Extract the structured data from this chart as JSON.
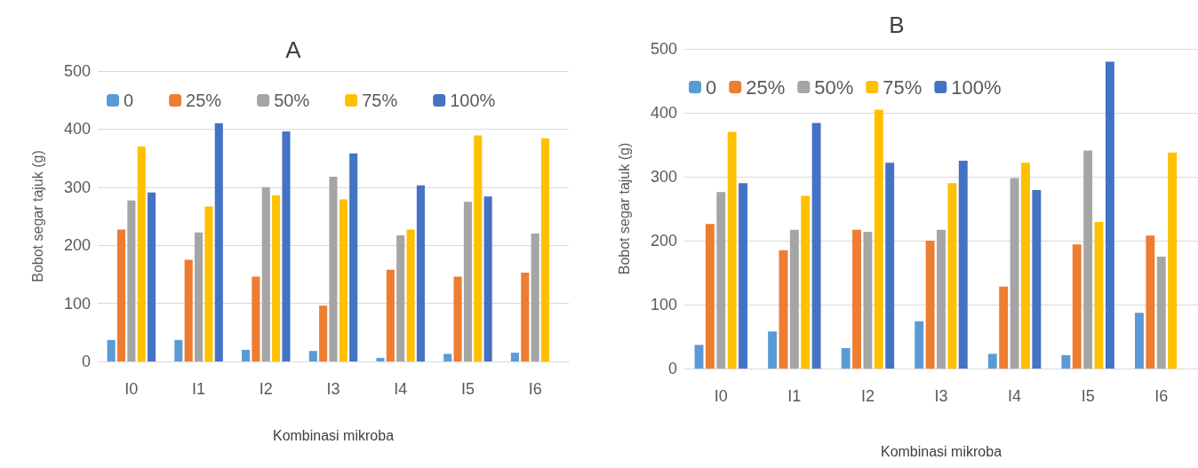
{
  "chart_data": [
    {
      "type": "bar",
      "title": "A",
      "xlabel": "Kombinasi mikroba",
      "ylabel": "Bobot segar tajuk (g)",
      "categories": [
        "I0",
        "I1",
        "I2",
        "I3",
        "I4",
        "I5",
        "I6"
      ],
      "ylim": [
        0,
        500
      ],
      "yticks": [
        0,
        100,
        200,
        300,
        400,
        500
      ],
      "grid": "y",
      "legend": "top left",
      "series": [
        {
          "name": "0",
          "color": "#5b9bd5",
          "values": [
            37,
            37,
            20,
            18,
            6,
            13,
            15
          ]
        },
        {
          "name": "25%",
          "color": "#ed7d31",
          "values": [
            227,
            175,
            146,
            96,
            158,
            146,
            153
          ]
        },
        {
          "name": "50%",
          "color": "#a5a5a5",
          "values": [
            277,
            222,
            300,
            318,
            217,
            275,
            220
          ]
        },
        {
          "name": "75%",
          "color": "#ffc000",
          "values": [
            370,
            267,
            286,
            279,
            227,
            389,
            384
          ]
        },
        {
          "name": "100%",
          "color": "#4472c4",
          "values": [
            291,
            410,
            396,
            358,
            303,
            284,
            null
          ]
        }
      ]
    },
    {
      "type": "bar",
      "title": "B",
      "xlabel": "Kombinasi mikroba",
      "ylabel": "Bobot segar tajuk (g)",
      "categories": [
        "I0",
        "I1",
        "I2",
        "I3",
        "I4",
        "I5",
        "I6"
      ],
      "ylim": [
        0,
        500
      ],
      "yticks": [
        0,
        100,
        200,
        300,
        400,
        500
      ],
      "grid": "y",
      "legend": "top left",
      "series": [
        {
          "name": "0",
          "color": "#5b9bd5",
          "values": [
            37,
            58,
            32,
            74,
            23,
            21,
            87
          ]
        },
        {
          "name": "25%",
          "color": "#ed7d31",
          "values": [
            226,
            185,
            217,
            200,
            128,
            194,
            208
          ]
        },
        {
          "name": "50%",
          "color": "#a5a5a5",
          "values": [
            276,
            217,
            214,
            217,
            298,
            341,
            175
          ]
        },
        {
          "name": "75%",
          "color": "#ffc000",
          "values": [
            370,
            270,
            405,
            290,
            322,
            229,
            338
          ]
        },
        {
          "name": "100%",
          "color": "#4472c4",
          "values": [
            290,
            384,
            322,
            325,
            279,
            480,
            null
          ]
        }
      ]
    }
  ]
}
